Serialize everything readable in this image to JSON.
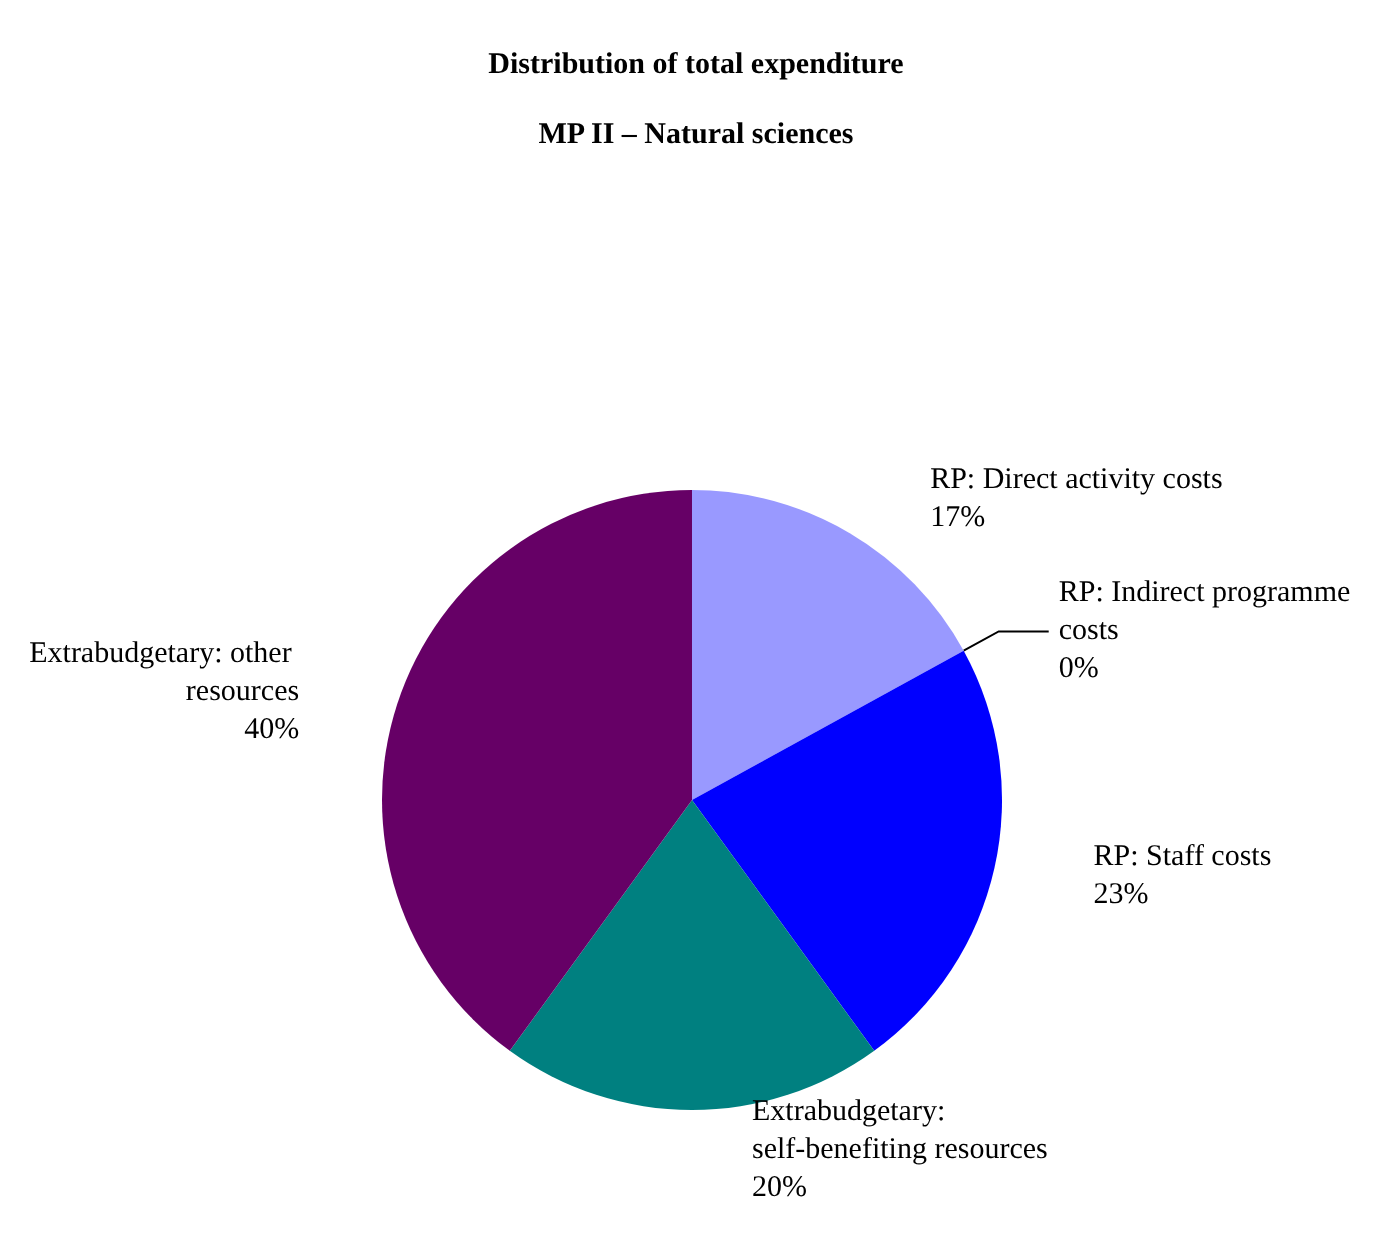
{
  "chart_data": {
    "type": "pie",
    "title": "Distribution of total expenditure",
    "subtitle": "MP II – Natural sciences",
    "categories": [
      "RP: Direct activity costs",
      "RP: Indirect programme costs",
      "RP: Staff costs",
      "Extrabudgetary: self-benefiting resources",
      "Extrabudgetary: other resources"
    ],
    "values": [
      17,
      0,
      23,
      20,
      40
    ],
    "value_labels": [
      "17%",
      "0%",
      "23%",
      "20%",
      "40%"
    ],
    "colors": [
      "#9999ff",
      "#993366",
      "#0000ff",
      "#008080",
      "#660066"
    ],
    "legend": false
  }
}
